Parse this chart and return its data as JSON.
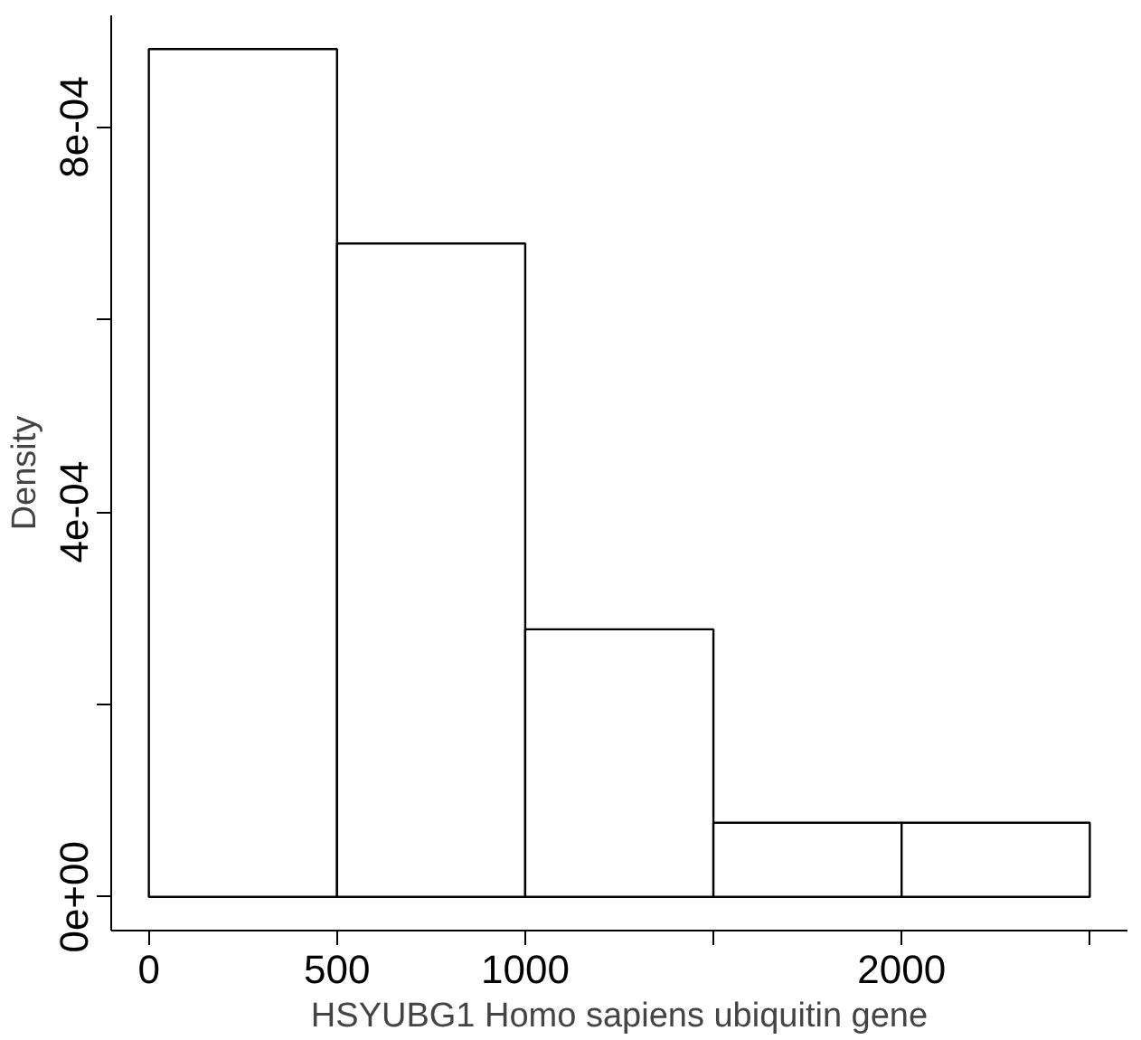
{
  "chart_data": {
    "type": "histogram",
    "xlabel": "HSYUBG1 Homo sapiens ubiquitin gene",
    "ylabel": "Density",
    "bins": [
      0,
      500,
      1000,
      1500,
      2000,
      2500
    ],
    "values": [
      0.000881,
      0.000679,
      0.000278,
      7.7e-05,
      7.7e-05
    ],
    "color": "#ffffff",
    "xlim": [
      -100,
      2600
    ],
    "ylim": [
      -3.5e-05,
      0.000916
    ],
    "xticks": [
      0,
      500,
      1000,
      {
        "value": 1500,
        "label": null
      },
      2000,
      {
        "value": 2500,
        "label": null
      }
    ],
    "yticks": [
      {
        "value": 0,
        "label": "0e+00"
      },
      {
        "value": 0.0002,
        "label": null
      },
      {
        "value": 0.0004,
        "label": "4e-04"
      },
      {
        "value": 0.0006,
        "label": null
      },
      {
        "value": 0.0008,
        "label": "8e-04"
      }
    ],
    "grid": false
  }
}
